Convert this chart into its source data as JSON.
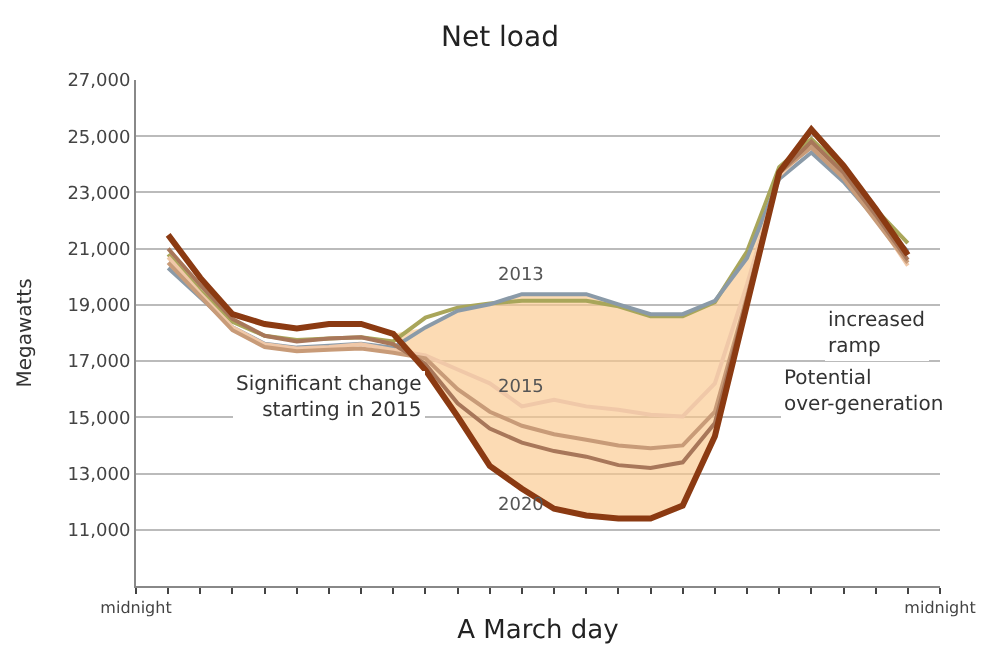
{
  "chart_data": {
    "type": "line",
    "title": "Net load",
    "xlabel": "A March day",
    "ylabel": "Megawatts",
    "categories": [
      "midnight",
      null,
      null,
      null,
      null,
      null,
      null,
      null,
      null,
      null,
      null,
      null,
      null,
      null,
      null,
      null,
      null,
      null,
      null,
      null,
      null,
      null,
      null,
      null,
      null,
      "midnight"
    ],
    "series": [
      {
        "color": "#a9a65a",
        "values": [
          null,
          20800,
          19500,
          18400,
          17900,
          17750,
          17800,
          17850,
          17700,
          18550,
          18900,
          19050,
          19150,
          19150,
          19150,
          18950,
          18600,
          18600,
          19100,
          20900,
          23900,
          24900,
          23800,
          22400,
          21200,
          null
        ]
      },
      {
        "name": "2013",
        "color": "#8a9aa8",
        "values": [
          null,
          20310,
          19260,
          18200,
          17620,
          17480,
          17550,
          17620,
          17480,
          18200,
          18790,
          19020,
          19380,
          19380,
          19380,
          19020,
          18670,
          18670,
          19140,
          20670,
          23480,
          24420,
          23380,
          22070,
          20900,
          null
        ]
      },
      {
        "name": "2015",
        "color": "#f0c8a8",
        "values": [
          null,
          20700,
          19400,
          18200,
          17600,
          17450,
          17500,
          17600,
          17400,
          17200,
          16700,
          16210,
          15390,
          15620,
          15390,
          15270,
          15090,
          15030,
          16210,
          19730,
          23600,
          24700,
          23600,
          22100,
          20400,
          null
        ]
      },
      {
        "color": "#c89b78",
        "values": [
          null,
          20500,
          19300,
          18100,
          17500,
          17350,
          17400,
          17450,
          17300,
          17100,
          16000,
          15200,
          14700,
          14400,
          14200,
          14000,
          13900,
          14000,
          15200,
          19300,
          23700,
          24600,
          23500,
          22000,
          20500,
          null
        ]
      },
      {
        "color": "#a8775a",
        "values": [
          null,
          21000,
          19700,
          18500,
          17900,
          17700,
          17800,
          17850,
          17600,
          16900,
          15500,
          14600,
          14100,
          13800,
          13600,
          13300,
          13200,
          13400,
          14800,
          19200,
          23700,
          24800,
          23700,
          22200,
          20600,
          null
        ]
      },
      {
        "name": "2020",
        "color": "#8b3a12",
        "values": [
          null,
          21490,
          19960,
          18670,
          18320,
          18160,
          18320,
          18320,
          17970,
          16680,
          15030,
          13270,
          12460,
          11750,
          11510,
          11400,
          11400,
          11860,
          14330,
          19020,
          23720,
          25240,
          23950,
          22420,
          20780,
          null
        ],
        "lower": [
          null,
          21490,
          19960,
          18670,
          18320,
          18160,
          18320,
          18320,
          17970,
          16680,
          15030,
          13270,
          12460,
          11750,
          11510,
          11400,
          11400,
          11860,
          14330,
          19020,
          23720,
          25240,
          23950,
          22420,
          20780,
          null
        ],
        "upper": [
          null,
          21490,
          19960,
          18670,
          18320,
          18160,
          18320,
          18320,
          17970,
          18200,
          18790,
          19020,
          19380,
          19380,
          19380,
          19020,
          18670,
          18670,
          19140,
          20670,
          23720,
          25240,
          23950,
          22420,
          20780,
          null
        ]
      }
    ],
    "ylim": [
      9000,
      27000
    ],
    "yticks": [
      {
        "value": 11000,
        "label": "11,000"
      },
      {
        "value": 13000,
        "label": "13,000"
      },
      {
        "value": 15000,
        "label": "15,000"
      },
      {
        "value": 17000,
        "label": "17,000"
      },
      {
        "value": 19000,
        "label": "19,000"
      },
      {
        "value": 21000,
        "label": "21,000"
      },
      {
        "value": 23000,
        "label": "23,000"
      },
      {
        "value": 25000,
        "label": "25,000"
      },
      {
        "value": 27000,
        "label": "27,000"
      }
    ],
    "grid": "y",
    "legend": false,
    "marker": "none",
    "line_style": "solid",
    "annotations": [
      "Significant change starting in 2015",
      "increased ramp",
      "Potential over-generation"
    ]
  }
}
